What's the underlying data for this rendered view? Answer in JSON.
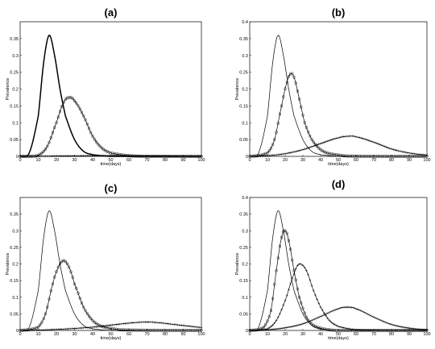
{
  "chart_data": [
    {
      "title": "(a)",
      "type": "line",
      "xlabel": "time(days)",
      "ylabel": "Prevalence",
      "xlim": [
        0,
        100
      ],
      "ylim": [
        0,
        0.4
      ],
      "xticks": [
        0,
        10,
        20,
        30,
        40,
        50,
        60,
        70,
        80,
        90,
        100
      ],
      "yticks": [
        0,
        0.05,
        0.1,
        0.15,
        0.2,
        0.25,
        0.3,
        0.35
      ],
      "series": [
        {
          "marker": "none",
          "style": "bold",
          "x": [
            0,
            5,
            10,
            13,
            16,
            19,
            22,
            25,
            30,
            35,
            40,
            50,
            60,
            100
          ],
          "y": [
            0,
            0.01,
            0.12,
            0.28,
            0.36,
            0.3,
            0.2,
            0.12,
            0.05,
            0.015,
            0.005,
            0,
            0,
            0
          ]
        },
        {
          "marker": "circle",
          "x": [
            0,
            10,
            15,
            20,
            24,
            27,
            30,
            35,
            40,
            45,
            50,
            60,
            70,
            100
          ],
          "y": [
            0,
            0.003,
            0.03,
            0.1,
            0.16,
            0.175,
            0.165,
            0.12,
            0.06,
            0.025,
            0.01,
            0.002,
            0,
            0
          ]
        },
        {
          "marker": "plus",
          "x": [
            0,
            20,
            40,
            60,
            80,
            100
          ],
          "y": [
            0,
            0.001,
            0.002,
            0.002,
            0.001,
            0
          ]
        }
      ]
    },
    {
      "title": "(b)",
      "type": "line",
      "xlabel": "time(days)",
      "ylabel": "Prevalence",
      "xlim": [
        0,
        100
      ],
      "ylim": [
        0,
        0.4
      ],
      "xticks": [
        0,
        10,
        20,
        30,
        40,
        50,
        60,
        70,
        80,
        90,
        100
      ],
      "yticks": [
        0,
        0.05,
        0.1,
        0.15,
        0.2,
        0.25,
        0.3,
        0.35,
        0.4
      ],
      "series": [
        {
          "marker": "none",
          "x": [
            0,
            5,
            10,
            13,
            16,
            19,
            22,
            25,
            30,
            35,
            40,
            50,
            60,
            100
          ],
          "y": [
            0,
            0.01,
            0.12,
            0.28,
            0.36,
            0.3,
            0.2,
            0.12,
            0.05,
            0.015,
            0.005,
            0,
            0,
            0
          ]
        },
        {
          "marker": "circle",
          "x": [
            0,
            10,
            14,
            18,
            21,
            23,
            25,
            28,
            31,
            35,
            40,
            45,
            55,
            100
          ],
          "y": [
            0,
            0.01,
            0.05,
            0.15,
            0.22,
            0.245,
            0.235,
            0.17,
            0.1,
            0.05,
            0.02,
            0.008,
            0.001,
            0
          ]
        },
        {
          "marker": "plus",
          "x": [
            0,
            10,
            20,
            30,
            40,
            50,
            56,
            60,
            70,
            80,
            90,
            100
          ],
          "y": [
            0,
            0.002,
            0.008,
            0.02,
            0.038,
            0.055,
            0.06,
            0.058,
            0.042,
            0.022,
            0.01,
            0.004
          ]
        }
      ]
    },
    {
      "title": "(c)",
      "type": "line",
      "xlabel": "time(days)",
      "ylabel": "Prevalence",
      "xlim": [
        0,
        100
      ],
      "ylim": [
        0,
        0.4
      ],
      "xticks": [
        0,
        10,
        20,
        30,
        40,
        50,
        60,
        70,
        80,
        90,
        100
      ],
      "yticks": [
        0,
        0.05,
        0.1,
        0.15,
        0.2,
        0.25,
        0.3,
        0.35
      ],
      "series": [
        {
          "marker": "none",
          "x": [
            0,
            5,
            10,
            13,
            16,
            19,
            22,
            25,
            30,
            35,
            40,
            50,
            60,
            100
          ],
          "y": [
            0,
            0.01,
            0.12,
            0.28,
            0.36,
            0.3,
            0.2,
            0.12,
            0.05,
            0.015,
            0.005,
            0,
            0,
            0
          ]
        },
        {
          "marker": "circle",
          "x": [
            0,
            10,
            14,
            18,
            21,
            24,
            27,
            30,
            35,
            40,
            45,
            55,
            100
          ],
          "y": [
            0,
            0.01,
            0.05,
            0.14,
            0.19,
            0.21,
            0.19,
            0.14,
            0.07,
            0.03,
            0.012,
            0.002,
            0
          ]
        },
        {
          "marker": "plus",
          "x": [
            0,
            10,
            20,
            30,
            40,
            50,
            60,
            68,
            75,
            85,
            95,
            100
          ],
          "y": [
            0,
            0.001,
            0.003,
            0.006,
            0.01,
            0.016,
            0.022,
            0.025,
            0.024,
            0.018,
            0.012,
            0.009
          ]
        }
      ]
    },
    {
      "title": "(d)",
      "type": "line",
      "xlabel": "time(days)",
      "ylabel": "Prevalence",
      "xlim": [
        0,
        100
      ],
      "ylim": [
        0,
        0.4
      ],
      "xticks": [
        0,
        10,
        20,
        30,
        40,
        50,
        60,
        70,
        80,
        90,
        100
      ],
      "yticks": [
        0,
        0.05,
        0.1,
        0.15,
        0.2,
        0.25,
        0.3,
        0.35,
        0.4
      ],
      "series": [
        {
          "marker": "none",
          "x": [
            0,
            5,
            10,
            13,
            16,
            19,
            22,
            25,
            30,
            35,
            40,
            50,
            60,
            100
          ],
          "y": [
            0,
            0.01,
            0.12,
            0.28,
            0.36,
            0.3,
            0.2,
            0.12,
            0.05,
            0.015,
            0.005,
            0,
            0,
            0
          ]
        },
        {
          "marker": "circle",
          "x": [
            0,
            8,
            12,
            15,
            18,
            20,
            22,
            25,
            28,
            32,
            36,
            42,
            50,
            100
          ],
          "y": [
            0,
            0.01,
            0.06,
            0.18,
            0.28,
            0.3,
            0.27,
            0.18,
            0.1,
            0.04,
            0.015,
            0.004,
            0,
            0
          ]
        },
        {
          "marker": "plus",
          "x": [
            0,
            10,
            15,
            20,
            25,
            28,
            32,
            36,
            40,
            45,
            50,
            60,
            100
          ],
          "y": [
            0,
            0.005,
            0.03,
            0.09,
            0.17,
            0.2,
            0.18,
            0.12,
            0.07,
            0.03,
            0.012,
            0.002,
            0
          ]
        },
        {
          "marker": "x",
          "x": [
            0,
            10,
            20,
            30,
            40,
            50,
            55,
            60,
            70,
            80,
            90,
            100
          ],
          "y": [
            0,
            0.002,
            0.008,
            0.02,
            0.042,
            0.065,
            0.07,
            0.065,
            0.04,
            0.018,
            0.007,
            0.002
          ]
        }
      ]
    }
  ]
}
